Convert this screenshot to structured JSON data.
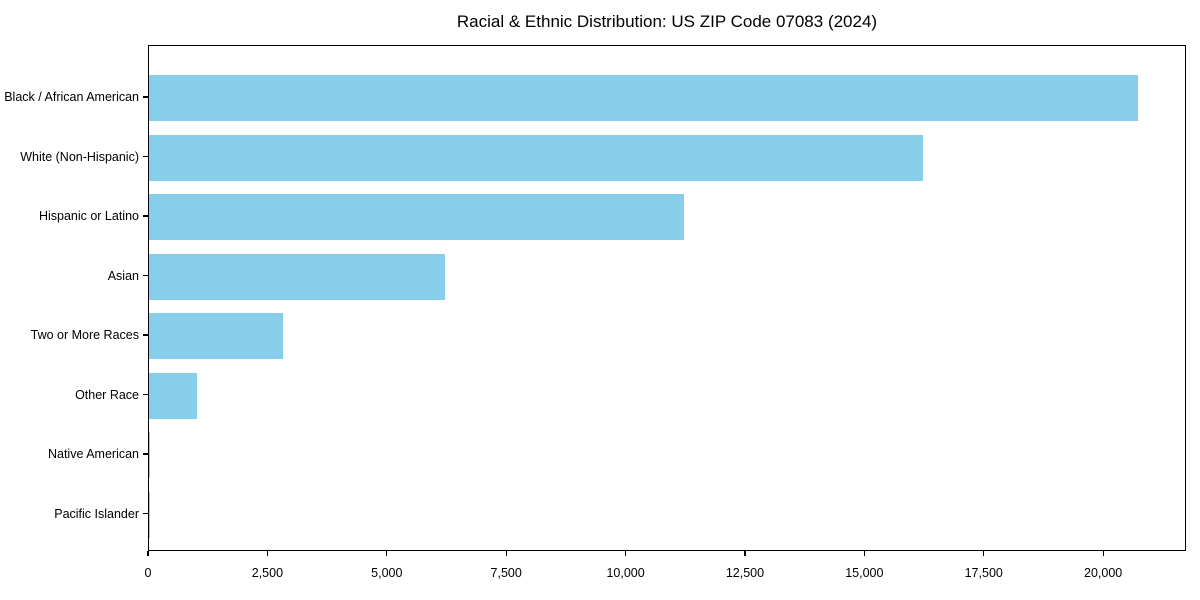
{
  "title": "Racial & Ethnic Distribution: US ZIP Code 07083 (2024)",
  "chart_data": {
    "type": "bar",
    "orientation": "horizontal",
    "title": "Racial & Ethnic Distribution: US ZIP Code 07083 (2024)",
    "xlabel": "",
    "ylabel": "",
    "categories": [
      "Black / African American",
      "White (Non-Hispanic)",
      "Hispanic or Latino",
      "Asian",
      "Two or More Races",
      "Other Race",
      "Native American",
      "Pacific Islander"
    ],
    "values": [
      20700,
      16200,
      11200,
      6200,
      2800,
      1000,
      30,
      15
    ],
    "xlim": [
      0,
      21735
    ],
    "x_ticks": [
      0,
      2500,
      5000,
      7500,
      10000,
      12500,
      15000,
      17500,
      20000
    ],
    "x_tick_labels": [
      "0",
      "2,500",
      "5,000",
      "7,500",
      "10,000",
      "12,500",
      "15,000",
      "17,500",
      "20,000"
    ],
    "bar_color": "#87CEEB",
    "axis_color": "#000000",
    "grid": false,
    "legend": null
  }
}
